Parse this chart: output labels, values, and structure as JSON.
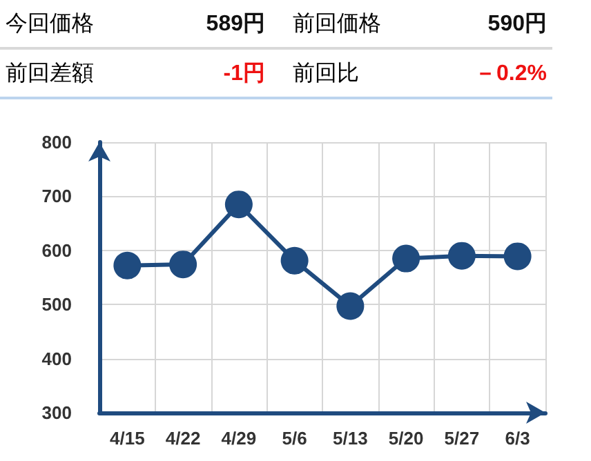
{
  "chart_data": [
    {
      "type": "other",
      "annotations": [
        "今回価格",
        "589円",
        "前回価格",
        "590円",
        "前回差額",
        "-1円",
        "前回比",
        "－0.2%"
      ]
    },
    {
      "type": "line",
      "categories": [
        "4/15",
        "4/22",
        "4/29",
        "5/6",
        "5/13",
        "5/20",
        "5/27",
        "6/3"
      ],
      "series": [
        {
          "color": "#1f4b7f",
          "values": [
            572,
            574,
            685,
            581,
            497,
            585,
            590,
            589
          ]
        }
      ],
      "ylim": [
        300,
        800
      ],
      "yticks": [
        300,
        400,
        500,
        600,
        700,
        800
      ],
      "grid": true,
      "marker": "circle",
      "line_style": "solid"
    }
  ]
}
